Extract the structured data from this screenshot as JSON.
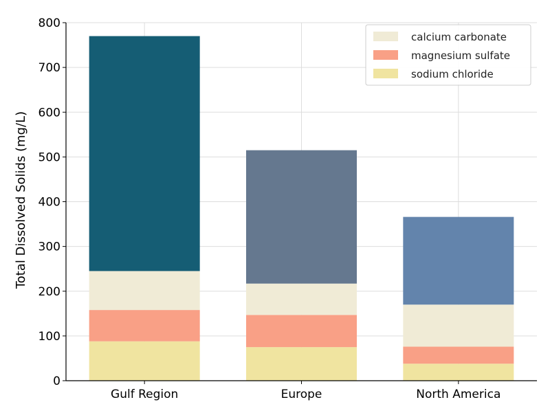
{
  "chart_data": {
    "type": "bar",
    "stacked": true,
    "title": "",
    "xlabel": "",
    "ylabel": "Total Dissolved Solids (mg/L)",
    "ylim": [
      0,
      800
    ],
    "yticks": [
      0,
      100,
      200,
      300,
      400,
      500,
      600,
      700,
      800
    ],
    "categories": [
      "Gulf Region",
      "Europe",
      "North America"
    ],
    "grid": true,
    "legend_placement": "top-right",
    "series": [
      {
        "name": "sodium chloride",
        "color": "#F0E4A0",
        "values": [
          88,
          75,
          38
        ]
      },
      {
        "name": "magnesium sulfate",
        "color": "#F9A086",
        "values": [
          70,
          72,
          38
        ]
      },
      {
        "name": "calcium carbonate",
        "color": "#F0EBD6",
        "values": [
          87,
          70,
          94
        ]
      },
      {
        "name": "",
        "color": "#155D74",
        "values": [
          525,
          0,
          0
        ]
      },
      {
        "name": "",
        "color": "#65788F",
        "values": [
          0,
          298,
          0
        ]
      },
      {
        "name": "",
        "color": "#6384AC",
        "values": [
          0,
          0,
          196
        ]
      }
    ],
    "legend_order": [
      "calcium carbonate",
      "magnesium sulfate",
      "sodium chloride"
    ]
  }
}
